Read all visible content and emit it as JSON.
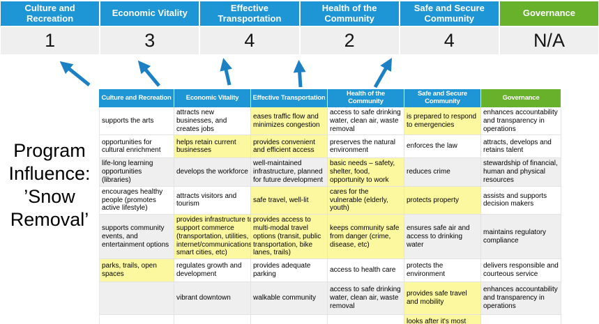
{
  "slide": {
    "program_label": {
      "lines": [
        "Program",
        "Influence:",
        "’Snow",
        "Removal’"
      ]
    },
    "banner": {
      "columns": [
        {
          "label": "Culture and Recreation",
          "score": "1",
          "style": "blue"
        },
        {
          "label": "Economic Vitality",
          "score": "3",
          "style": "blue"
        },
        {
          "label": "Effective Transportation",
          "score": "4",
          "style": "blue"
        },
        {
          "label": "Health of the Community",
          "score": "2",
          "style": "blue"
        },
        {
          "label": "Safe and Secure Community",
          "score": "4",
          "style": "blue"
        },
        {
          "label": "Governance",
          "score": "N/A",
          "style": "green"
        }
      ]
    },
    "matrix": {
      "headers": [
        {
          "label": "Culture and Recreation",
          "style": "blue"
        },
        {
          "label": "Economic Vitality",
          "style": "blue"
        },
        {
          "label": "Effective Transportation",
          "style": "blue"
        },
        {
          "label": "Health of the Community",
          "style": "blue"
        },
        {
          "label": "Safe and Secure Community",
          "style": "blue"
        },
        {
          "label": "Governance",
          "style": "green"
        }
      ],
      "rows": [
        {
          "shade": false,
          "cells": [
            {
              "text": "supports the arts",
              "highlight": false
            },
            {
              "text": "attracts new businesses, and creates jobs",
              "highlight": false
            },
            {
              "text": "eases traffic flow and minimizes congestion",
              "highlight": true
            },
            {
              "text": "access to safe drinking water, clean air, waste removal",
              "highlight": false
            },
            {
              "text": "is prepared to respond to emergencies",
              "highlight": true
            },
            {
              "text": "enhances accountability and transparency in operations",
              "highlight": false
            }
          ]
        },
        {
          "shade": false,
          "cells": [
            {
              "text": "opportunities for cultural enrichment",
              "highlight": false
            },
            {
              "text": "helps retain current businesses",
              "highlight": true
            },
            {
              "text": "provides convenient and efficient access",
              "highlight": true
            },
            {
              "text": "preserves the natural environment",
              "highlight": false
            },
            {
              "text": "enforces the law",
              "highlight": false
            },
            {
              "text": "attracts, develops and retains talent",
              "highlight": false
            }
          ]
        },
        {
          "shade": true,
          "cells": [
            {
              "text": "life-long learning opportunities (libraries)",
              "highlight": false
            },
            {
              "text": "develops the workforce",
              "highlight": false
            },
            {
              "text": "well-maintained infrastructure, planned for future development",
              "highlight": false
            },
            {
              "text": "basic needs – safety, shelter, food, opportunity to work",
              "highlight": true
            },
            {
              "text": "reduces crime",
              "highlight": false
            },
            {
              "text": "stewardship of financial, human and physical resources",
              "highlight": false
            }
          ]
        },
        {
          "shade": false,
          "cells": [
            {
              "text": "encourages healthy people (promotes active lifestyle)",
              "highlight": false
            },
            {
              "text": "attracts visitors and tourism",
              "highlight": false
            },
            {
              "text": "safe travel, well-lit",
              "highlight": true
            },
            {
              "text": "cares for the vulnerable (elderly, youth)",
              "highlight": true
            },
            {
              "text": "protects property",
              "highlight": true
            },
            {
              "text": "assists and supports decision makers",
              "highlight": false
            }
          ]
        },
        {
          "shade": true,
          "cells": [
            {
              "text": "supports community events, and entertainment options",
              "highlight": false
            },
            {
              "text": "provides infrastructure to support commerce (transportation, utilities, internet/communications, smart cities, etc)",
              "highlight": true
            },
            {
              "text": "provides access to multi-modal travel options (transit, public transportation, bike lanes, trails)",
              "highlight": true
            },
            {
              "text": "keeps community safe from danger (crime, disease, etc)",
              "highlight": true
            },
            {
              "text": "ensures safe air and access to drinking water",
              "highlight": false
            },
            {
              "text": "maintains regulatory compliance",
              "highlight": false
            }
          ]
        },
        {
          "shade": false,
          "cells": [
            {
              "text": "parks, trails, open spaces",
              "highlight": true
            },
            {
              "text": "regulates growth and development",
              "highlight": false
            },
            {
              "text": "provides adequate parking",
              "highlight": false
            },
            {
              "text": "access to health care",
              "highlight": false
            },
            {
              "text": "protects the environment",
              "highlight": false
            },
            {
              "text": "delivers responsible and courteous service",
              "highlight": false
            }
          ]
        },
        {
          "shade": true,
          "cells": [
            {
              "text": "",
              "highlight": false
            },
            {
              "text": "vibrant downtown",
              "highlight": false
            },
            {
              "text": "walkable community",
              "highlight": false
            },
            {
              "text": "access to safe drinking water, clean air, waste removal",
              "highlight": false
            },
            {
              "text": "provides safe travel and mobility",
              "highlight": true
            },
            {
              "text": "enhances accountability and transparency in operations",
              "highlight": false
            }
          ]
        },
        {
          "shade": false,
          "cells": [
            {
              "text": "",
              "highlight": false
            },
            {
              "text": "",
              "highlight": false
            },
            {
              "text": "",
              "highlight": false
            },
            {
              "text": "",
              "highlight": false
            },
            {
              "text": "looks after it's most vulnerable",
              "highlight": true
            },
            {
              "text": "",
              "highlight": false
            }
          ]
        }
      ]
    },
    "colors": {
      "header_blue": "#1E95D4",
      "header_green": "#68B12A",
      "highlight_yellow": "#FCF8A0",
      "row_gray": "#EFEFEF",
      "arrow_blue": "#1B80C4"
    }
  }
}
